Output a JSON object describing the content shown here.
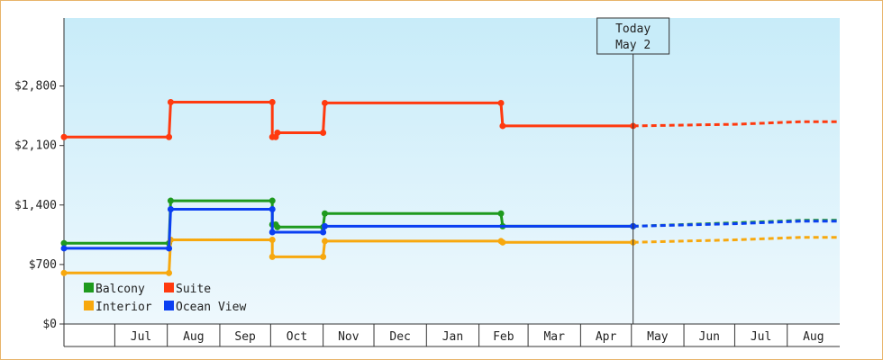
{
  "chart_data": {
    "type": "line",
    "title": "",
    "xlabel": "",
    "ylabel": "",
    "ylim": [
      0,
      3600
    ],
    "y_ticks": [
      {
        "value": 0,
        "label": "$0"
      },
      {
        "value": 700,
        "label": "$700"
      },
      {
        "value": 1400,
        "label": "$1,400"
      },
      {
        "value": 2100,
        "label": "$2,100"
      },
      {
        "value": 2800,
        "label": "$2,800"
      }
    ],
    "x_start": "2023-06-01",
    "x_end": "2024-08-31",
    "x_months": [
      {
        "label": "Jul",
        "start": "2023-07-01",
        "end": "2023-07-31"
      },
      {
        "label": "Aug",
        "start": "2023-08-01",
        "end": "2023-08-31"
      },
      {
        "label": "Sep",
        "start": "2023-09-01",
        "end": "2023-09-30"
      },
      {
        "label": "Oct",
        "start": "2023-10-01",
        "end": "2023-10-31"
      },
      {
        "label": "Nov",
        "start": "2023-11-01",
        "end": "2023-11-30"
      },
      {
        "label": "Dec",
        "start": "2023-12-01",
        "end": "2023-12-31"
      },
      {
        "label": "Jan",
        "start": "2024-01-01",
        "end": "2024-01-31"
      },
      {
        "label": "Feb",
        "start": "2024-02-01",
        "end": "2024-02-29"
      },
      {
        "label": "Mar",
        "start": "2024-03-01",
        "end": "2024-03-31"
      },
      {
        "label": "Apr",
        "start": "2024-04-01",
        "end": "2024-04-30"
      },
      {
        "label": "May",
        "start": "2024-05-01",
        "end": "2024-05-31"
      },
      {
        "label": "Jun",
        "start": "2024-06-01",
        "end": "2024-06-30"
      },
      {
        "label": "Jul",
        "start": "2024-07-01",
        "end": "2024-07-31"
      },
      {
        "label": "Aug",
        "start": "2024-08-01",
        "end": "2024-08-31"
      }
    ],
    "today": {
      "line1": "Today",
      "line2": "May 2",
      "date": "2024-05-02"
    },
    "legend_position": "bottom-left",
    "series": [
      {
        "name": "Balcony",
        "color": "#1e9a1e",
        "points": [
          [
            "2023-06-01",
            950
          ],
          [
            "2023-08-02",
            950
          ],
          [
            "2023-08-03",
            1450
          ],
          [
            "2023-10-02",
            1450
          ],
          [
            "2023-10-02",
            1170
          ],
          [
            "2023-10-04",
            1170
          ],
          [
            "2023-10-05",
            1140
          ],
          [
            "2023-11-01",
            1140
          ],
          [
            "2023-11-02",
            1300
          ],
          [
            "2024-02-14",
            1300
          ],
          [
            "2024-02-15",
            1150
          ],
          [
            "2024-05-02",
            1150
          ]
        ],
        "forecast": [
          [
            "2024-05-02",
            1150
          ],
          [
            "2024-07-01",
            1190
          ],
          [
            "2024-08-10",
            1220
          ],
          [
            "2024-08-31",
            1220
          ]
        ]
      },
      {
        "name": "Suite",
        "color": "#ff3a0f",
        "points": [
          [
            "2023-06-01",
            2200
          ],
          [
            "2023-08-02",
            2200
          ],
          [
            "2023-08-03",
            2610
          ],
          [
            "2023-10-02",
            2610
          ],
          [
            "2023-10-02",
            2200
          ],
          [
            "2023-10-04",
            2200
          ],
          [
            "2023-10-05",
            2250
          ],
          [
            "2023-11-01",
            2250
          ],
          [
            "2023-11-02",
            2600
          ],
          [
            "2024-02-14",
            2600
          ],
          [
            "2024-02-15",
            2330
          ],
          [
            "2024-05-02",
            2330
          ]
        ],
        "forecast": [
          [
            "2024-05-02",
            2330
          ],
          [
            "2024-07-01",
            2350
          ],
          [
            "2024-08-10",
            2380
          ],
          [
            "2024-08-31",
            2380
          ]
        ]
      },
      {
        "name": "Interior",
        "color": "#f7a80e",
        "points": [
          [
            "2023-06-01",
            600
          ],
          [
            "2023-08-02",
            600
          ],
          [
            "2023-08-03",
            990
          ],
          [
            "2023-10-02",
            990
          ],
          [
            "2023-10-02",
            790
          ],
          [
            "2023-11-01",
            790
          ],
          [
            "2023-11-02",
            975
          ],
          [
            "2024-02-14",
            975
          ],
          [
            "2024-02-15",
            960
          ],
          [
            "2024-05-02",
            960
          ]
        ],
        "forecast": [
          [
            "2024-05-02",
            960
          ],
          [
            "2024-07-01",
            990
          ],
          [
            "2024-08-10",
            1020
          ],
          [
            "2024-08-31",
            1020
          ]
        ]
      },
      {
        "name": "Ocean View",
        "color": "#0b3ff2",
        "points": [
          [
            "2023-06-01",
            890
          ],
          [
            "2023-08-02",
            890
          ],
          [
            "2023-08-03",
            1350
          ],
          [
            "2023-10-02",
            1350
          ],
          [
            "2023-10-02",
            1080
          ],
          [
            "2023-11-01",
            1080
          ],
          [
            "2023-11-02",
            1150
          ],
          [
            "2024-05-02",
            1150
          ]
        ],
        "forecast": [
          [
            "2024-05-02",
            1150
          ],
          [
            "2024-07-01",
            1180
          ],
          [
            "2024-08-10",
            1210
          ],
          [
            "2024-08-31",
            1210
          ]
        ]
      }
    ]
  }
}
